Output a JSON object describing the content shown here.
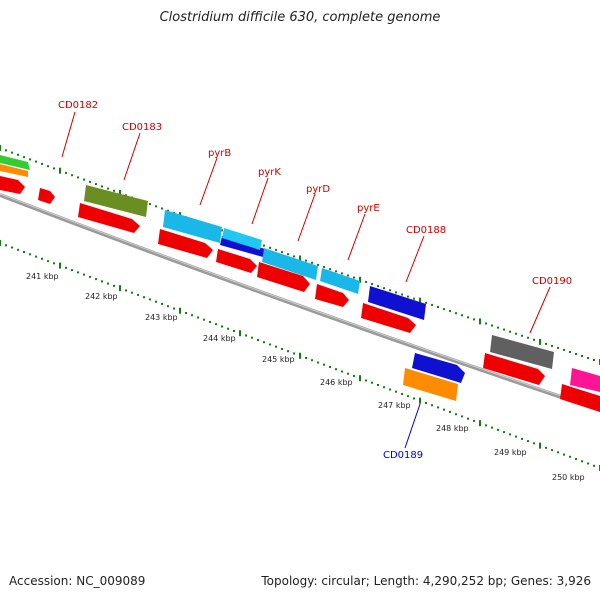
{
  "title": "Clostridium difficile 630, complete genome",
  "footer": {
    "accession": "Accession: NC_009089",
    "summary": "Topology: circular; Length: 4,290,252 bp; Genes: 3,926"
  },
  "scale_labels": [
    "241 kbp",
    "242 kbp",
    "243 kbp",
    "244 kbp",
    "245 kbp",
    "246 kbp",
    "247 kbp",
    "248 kbp",
    "249 kbp",
    "250 kbp"
  ],
  "gene_labels": [
    "CD0182",
    "CD0183",
    "pyrB",
    "pyrK",
    "pyrD",
    "pyrE",
    "CD0188",
    "CD0190",
    "CD0189"
  ],
  "colors": {
    "backbone": "#8a8a8a",
    "tick": "#1a7a1a",
    "feature_label_red": "#cc0000",
    "feature_label_blue": "#0000cc",
    "cds_red": "#ee0000",
    "light_blue": "#1ab8e8",
    "dark_blue": "#1010d0",
    "olive": "#6b8e23",
    "orange": "#ff8c00",
    "gray": "#606060",
    "magenta": "#ff1493",
    "green": "#33cc33"
  }
}
